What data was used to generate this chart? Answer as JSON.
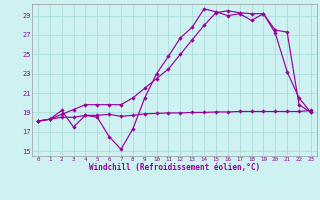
{
  "xlabel": "Windchill (Refroidissement éolien,°C)",
  "bg_color": "#cef2f2",
  "grid_color": "#aadddd",
  "line_color": "#990099",
  "xlim": [
    -0.5,
    23.5
  ],
  "ylim": [
    14.5,
    30.2
  ],
  "yticks": [
    15,
    17,
    19,
    21,
    23,
    25,
    27,
    29
  ],
  "xticks": [
    0,
    1,
    2,
    3,
    4,
    5,
    6,
    7,
    8,
    9,
    10,
    11,
    12,
    13,
    14,
    15,
    16,
    17,
    18,
    19,
    20,
    21,
    22,
    23
  ],
  "line1_x": [
    0,
    1,
    2,
    3,
    4,
    5,
    6,
    7,
    8,
    9,
    10,
    11,
    12,
    13,
    14,
    15,
    16,
    17,
    18,
    19,
    20,
    21,
    22,
    23
  ],
  "line1_y": [
    18.1,
    18.3,
    18.5,
    18.5,
    18.7,
    18.7,
    18.8,
    18.6,
    18.7,
    18.85,
    18.9,
    18.95,
    18.95,
    19.0,
    19.0,
    19.05,
    19.05,
    19.1,
    19.1,
    19.1,
    19.1,
    19.1,
    19.1,
    19.2
  ],
  "line2_x": [
    0,
    1,
    2,
    3,
    4,
    5,
    6,
    7,
    8,
    9,
    10,
    11,
    12,
    13,
    14,
    15,
    16,
    17,
    18,
    19,
    20,
    21,
    22,
    23
  ],
  "line2_y": [
    18.1,
    18.3,
    19.2,
    17.5,
    18.7,
    18.5,
    16.5,
    15.2,
    17.3,
    20.5,
    23.0,
    24.8,
    26.7,
    27.8,
    29.7,
    29.4,
    29.0,
    29.2,
    28.5,
    29.2,
    27.2,
    23.2,
    20.5,
    19.0
  ],
  "line3_x": [
    0,
    1,
    2,
    3,
    4,
    5,
    6,
    7,
    8,
    9,
    10,
    11,
    12,
    13,
    14,
    15,
    16,
    17,
    18,
    19,
    20,
    21,
    22,
    23
  ],
  "line3_y": [
    18.1,
    18.3,
    18.8,
    19.3,
    19.8,
    19.8,
    19.8,
    19.8,
    20.5,
    21.5,
    22.5,
    23.5,
    25.0,
    26.5,
    28.0,
    29.3,
    29.5,
    29.3,
    29.2,
    29.2,
    27.5,
    27.3,
    19.8,
    19.0
  ]
}
